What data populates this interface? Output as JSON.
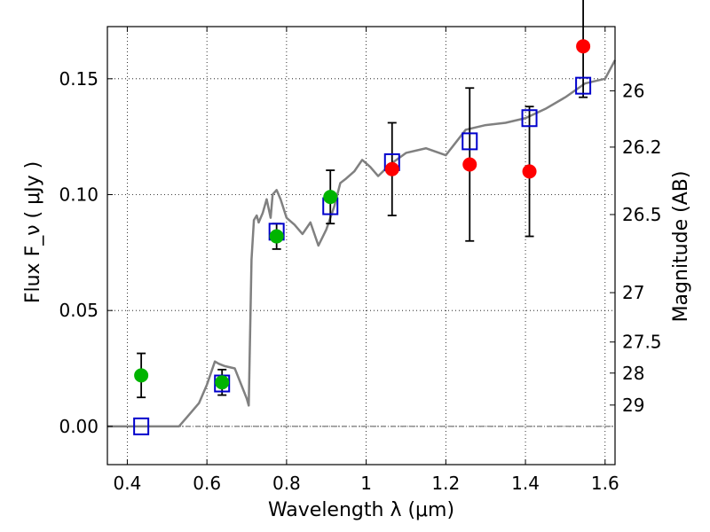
{
  "chart_data": {
    "type": "scatter",
    "xlabel": "Wavelength  λ (μm)",
    "ylabel": "Flux  F_ν  ( μJy )",
    "ylabel_right": "Magnitude (AB)",
    "xlim": [
      0.35,
      1.625
    ],
    "ylim": [
      -0.0165,
      0.1725
    ],
    "x_ticks": [
      0.4,
      0.6,
      0.8,
      1.0,
      1.2,
      1.4,
      1.6
    ],
    "x_tick_labels": [
      "0.4",
      "0.6",
      "0.8",
      "1",
      "1.2",
      "1.4",
      "1.6"
    ],
    "y_ticks": [
      0.0,
      0.05,
      0.1,
      0.15
    ],
    "y_tick_labels": [
      "0.00",
      "0.05",
      "0.10",
      "0.15"
    ],
    "mag_ticks": [
      {
        "label": "26",
        "y": 0.1448
      },
      {
        "label": "26.2",
        "y": 0.1205
      },
      {
        "label": "26.5",
        "y": 0.0914
      },
      {
        "label": "27",
        "y": 0.0577
      },
      {
        "label": "27.5",
        "y": 0.0364
      },
      {
        "label": "28",
        "y": 0.023
      },
      {
        "label": "29",
        "y": 0.0092
      }
    ],
    "grid": true,
    "zero_line": true,
    "colors": {
      "spectrum": "#808080",
      "green": "#00b400",
      "red": "#ff0000",
      "model": "#0000cc",
      "errorbar": "#000000"
    },
    "series": [
      {
        "marker": "circle-green",
        "x": [
          0.435,
          0.638,
          0.775,
          0.91
        ],
        "y": [
          0.022,
          0.019,
          0.082,
          0.099
        ],
        "yerr": [
          0.0095,
          0.0055,
          0.0055,
          0.0115
        ]
      },
      {
        "marker": "circle-red",
        "x": [
          1.065,
          1.26,
          1.41,
          1.545
        ],
        "y": [
          0.111,
          0.113,
          0.11,
          0.164
        ],
        "yerr": [
          0.02,
          0.033,
          0.028,
          0.022
        ]
      },
      {
        "marker": "open-square",
        "x": [
          0.435,
          0.638,
          0.775,
          0.91,
          1.065,
          1.26,
          1.41,
          1.545
        ],
        "y": [
          0.0,
          0.0185,
          0.084,
          0.095,
          0.114,
          0.123,
          0.133,
          0.147
        ]
      },
      {
        "marker": "spectrum-line",
        "x": [
          0.35,
          0.53,
          0.55,
          0.58,
          0.6,
          0.62,
          0.63,
          0.645,
          0.67,
          0.7,
          0.705,
          0.712,
          0.718,
          0.725,
          0.73,
          0.74,
          0.75,
          0.76,
          0.765,
          0.775,
          0.785,
          0.8,
          0.82,
          0.84,
          0.86,
          0.88,
          0.9,
          0.92,
          0.935,
          0.95,
          0.97,
          0.99,
          1.01,
          1.03,
          1.06,
          1.1,
          1.15,
          1.2,
          1.25,
          1.3,
          1.35,
          1.4,
          1.45,
          1.5,
          1.55,
          1.6,
          1.625
        ],
        "y": [
          0.0,
          0.0,
          0.004,
          0.01,
          0.018,
          0.028,
          0.027,
          0.026,
          0.025,
          0.012,
          0.009,
          0.072,
          0.089,
          0.091,
          0.088,
          0.092,
          0.098,
          0.09,
          0.1,
          0.102,
          0.098,
          0.09,
          0.087,
          0.083,
          0.088,
          0.078,
          0.085,
          0.095,
          0.105,
          0.107,
          0.11,
          0.115,
          0.112,
          0.108,
          0.113,
          0.118,
          0.12,
          0.117,
          0.128,
          0.13,
          0.131,
          0.133,
          0.137,
          0.142,
          0.148,
          0.15,
          0.158
        ]
      }
    ]
  }
}
